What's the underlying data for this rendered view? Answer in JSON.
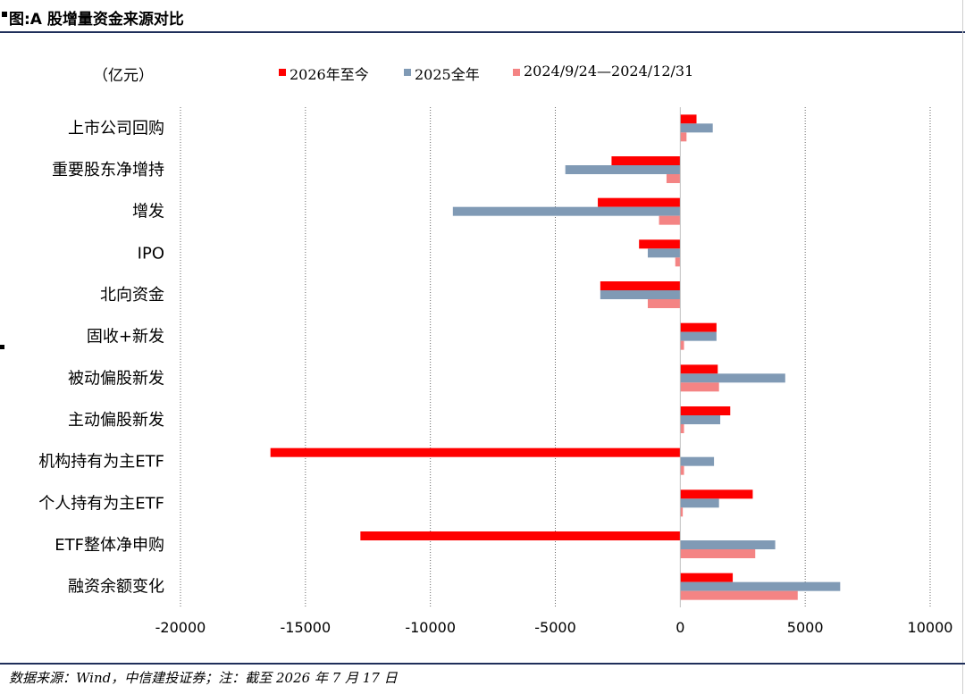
{
  "title": "图:A 股增量资金来源对比",
  "unit_label": "（亿元）",
  "source": "数据来源：Wind，中信建投证券；注：截至 2026 年 7 月 17 日",
  "colors": {
    "series1": "#ff0000",
    "series2": "#809ab5",
    "series3": "#f48484",
    "rule": "#1f2f5a"
  },
  "chart_data": {
    "type": "bar",
    "orientation": "horizontal",
    "categories": [
      "上市公司回购",
      "重要股东净增持",
      "增发",
      "IPO",
      "北向资金",
      "固收+新发",
      "被动偏股新发",
      "主动偏股新发",
      "机构持有为主ETF",
      "个人持有为主ETF",
      "ETF整体净申购",
      "融资余额变化"
    ],
    "series": [
      {
        "name": "2026年至今",
        "values": [
          650,
          -2750,
          -3300,
          -1650,
          -3200,
          1450,
          1500,
          2000,
          -16400,
          2900,
          -12800,
          2100
        ]
      },
      {
        "name": "2025全年",
        "values": [
          1300,
          -4600,
          -9100,
          -1300,
          -3200,
          1450,
          4200,
          1600,
          1350,
          1550,
          3800,
          6400
        ]
      },
      {
        "name": "2024/9/24—2024/12/31",
        "values": [
          250,
          -550,
          -850,
          -200,
          -1300,
          150,
          1550,
          150,
          150,
          100,
          3000,
          4700
        ]
      }
    ],
    "xlim": [
      -20000,
      10000
    ],
    "xticks": [
      "-20000",
      "-15000",
      "-10000",
      "-5000",
      "0",
      "5000",
      "10000"
    ],
    "xtick_values": [
      -20000,
      -15000,
      -10000,
      -5000,
      0,
      5000,
      10000
    ],
    "gridlines": "vertical dotted",
    "legend_position": "top"
  }
}
